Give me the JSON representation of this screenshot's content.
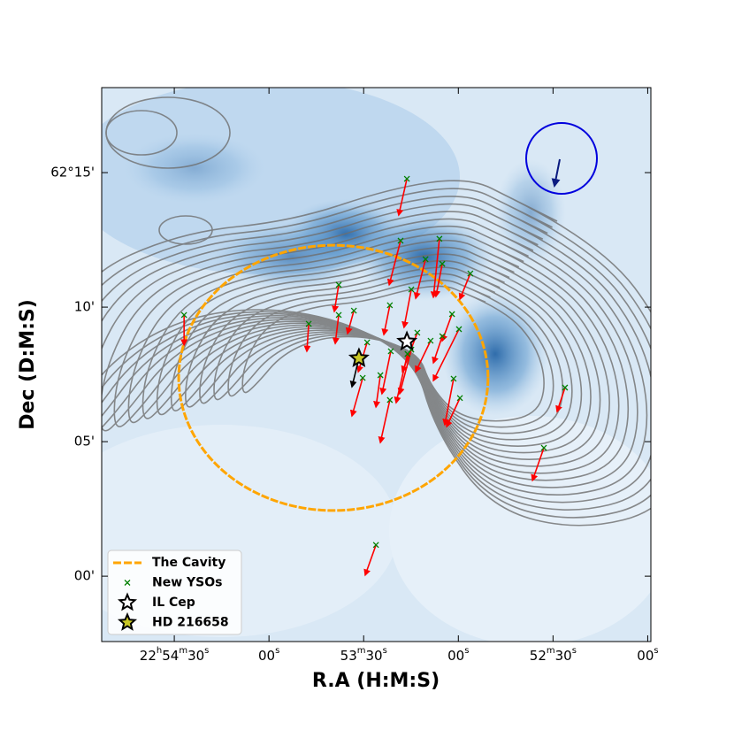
{
  "chart_data": {
    "type": "scatter",
    "xlabel": "R.A (H:M:S)",
    "ylabel": "Dec (D:M:S)",
    "xlim": [
      3293,
      3119
    ],
    "ylim": [
      -2.43,
      18.16
    ],
    "xticks": [
      {
        "value": 3270,
        "label": "22h54m30s"
      },
      {
        "value": 3240,
        "label": "00s"
      },
      {
        "value": 3210,
        "label": "53m30s"
      },
      {
        "value": 3180,
        "label": "00s"
      },
      {
        "value": 3150,
        "label": "52m30s"
      },
      {
        "value": 3120,
        "label": "00s"
      }
    ],
    "yticks": [
      {
        "value": 15,
        "label": "62°15'"
      },
      {
        "value": 10,
        "label": "10'"
      },
      {
        "value": 5,
        "label": "05'"
      },
      {
        "value": 0,
        "label": "00'"
      }
    ],
    "cavity": {
      "name": "The Cavity",
      "color": "orange",
      "center_x": 3219.6,
      "center_y": 7.37,
      "width": 98,
      "height": 9.86
    },
    "series": [
      {
        "name": "New YSOs",
        "color": "green",
        "marker": "x",
        "arrow_color": "red",
        "x": [
          3196.3,
          3198.3,
          3190.4,
          3186.0,
          3185.1,
          3176.2,
          3217.9,
          3213.1,
          3227.4,
          3266.9,
          3217.9,
          3201.7,
          3194.9,
          3182.0,
          3179.8,
          3188.8,
          3193.0,
          3194.9,
          3201.4,
          3208.9,
          3210.3,
          3204.7,
          3201.7,
          3181.5,
          3179.5,
          3146.2,
          3152.9,
          3206.1,
          3196.1,
          3185.1
        ],
        "y": [
          14.77,
          12.47,
          11.78,
          12.54,
          11.61,
          11.25,
          10.83,
          9.87,
          9.38,
          9.71,
          9.71,
          10.07,
          10.66,
          9.74,
          9.18,
          8.75,
          9.05,
          8.42,
          8.36,
          8.69,
          7.37,
          7.47,
          6.55,
          7.34,
          6.62,
          7.01,
          4.77,
          1.16,
          8.26,
          8.92
        ],
        "arrow_x": [
          3198.9,
          3201.9,
          3193.5,
          3187.9,
          3187.1,
          3179.5,
          3219.3,
          3215.1,
          3228.0,
          3266.9,
          3219.0,
          3203.6,
          3197.2,
          3185.1,
          3187.9,
          3193.5,
          3197.7,
          3198.6,
          3204.2,
          3211.7,
          3213.7,
          3206.1,
          3204.7,
          3184.3,
          3183.7,
          3148.7,
          3156.5,
          3209.5,
          3199.7,
          3187.9
        ],
        "arrow_y": [
          13.42,
          10.83,
          10.33,
          10.37,
          10.4,
          10.3,
          9.84,
          9.02,
          8.36,
          8.59,
          8.65,
          8.98,
          9.25,
          8.75,
          7.27,
          7.6,
          7.6,
          6.78,
          6.78,
          7.6,
          5.96,
          6.29,
          4.97,
          5.63,
          5.56,
          6.12,
          3.56,
          0.04,
          6.45,
          7.93
        ]
      },
      {
        "name": "IL Cep",
        "color": "white",
        "marker": "star",
        "x": [
          3196.3
        ],
        "y": [
          8.72
        ]
      },
      {
        "name": "HD 216658",
        "color": "#c9c826",
        "marker": "star",
        "arrow_color": "black",
        "x": [
          3211.5
        ],
        "y": [
          8.1
        ],
        "arrow_x": [
          3213.7
        ],
        "arrow_y": [
          7.04
        ]
      }
    ],
    "legend": "lower left"
  }
}
